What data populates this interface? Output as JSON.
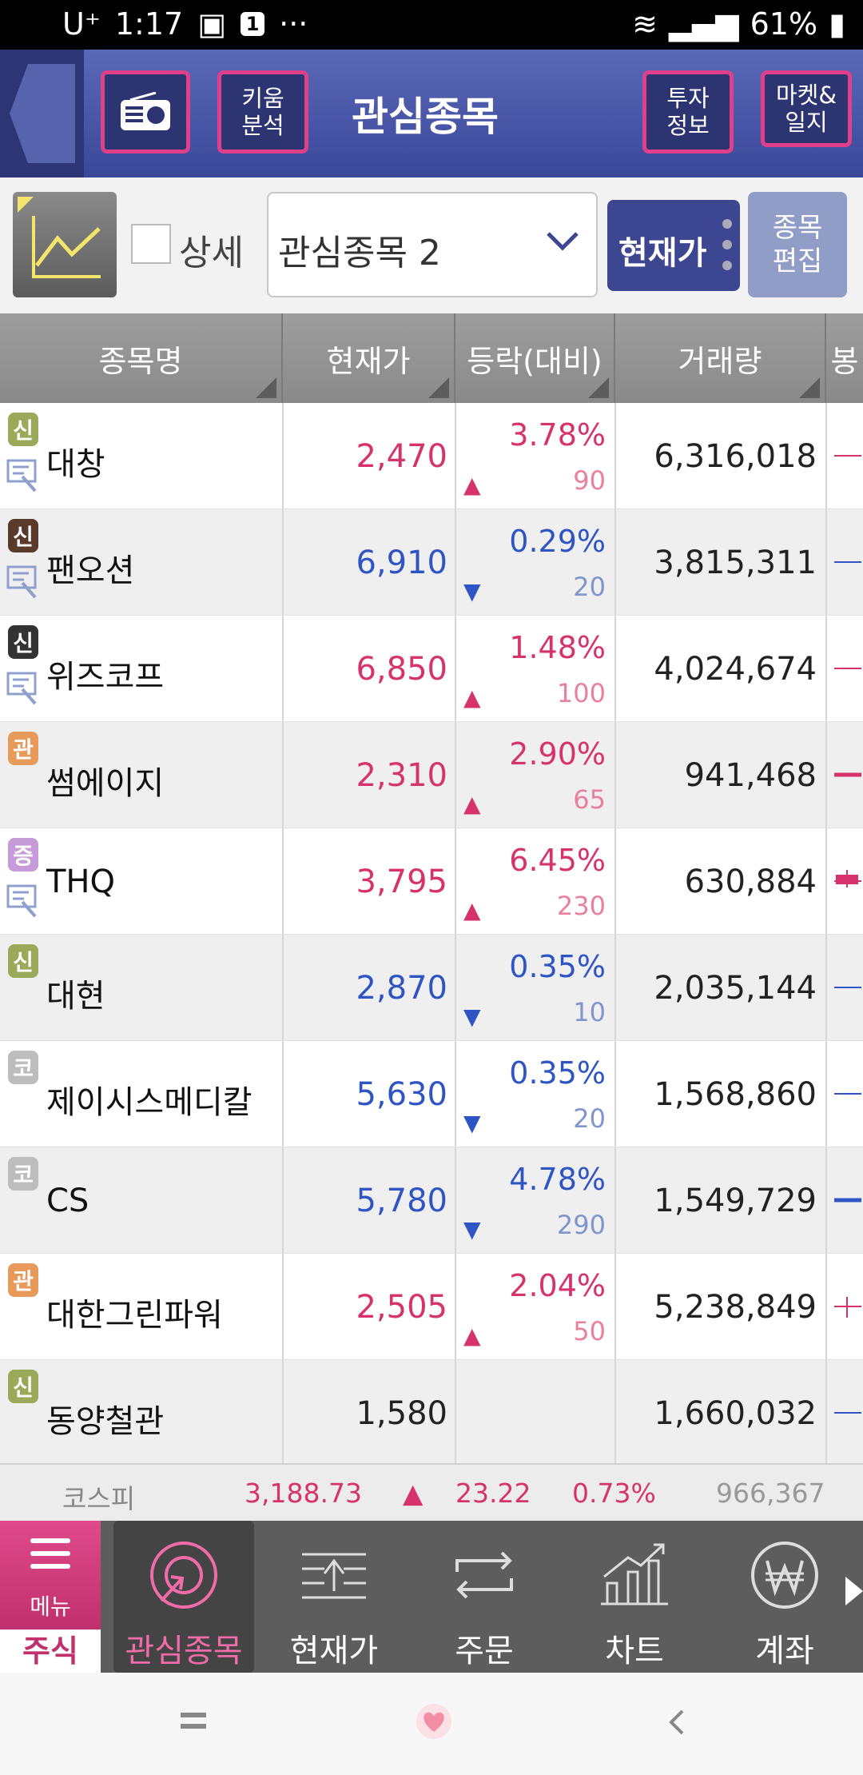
{
  "status_bar": {
    "carrier": "U⁺",
    "time": "1:17",
    "notification_count": "1",
    "dots": "···",
    "battery": "61%"
  },
  "header": {
    "btn_radio_icon": "radio-icon",
    "btn_kiwoom": "키움\n분석",
    "title": "관심종목",
    "btn_invest": "투자\n정보",
    "btn_market": "마켓&\n일지"
  },
  "toolbar": {
    "detail_label": "상세",
    "group_select": "관심종목 2",
    "price_mode": "현재가",
    "edit_btn": "종목\n편집"
  },
  "table": {
    "columns": [
      "종목명",
      "현재가",
      "등락(대비)",
      "거래량",
      "봉"
    ],
    "rows": [
      {
        "badge": "신",
        "badge_color": "#9aaa5a",
        "name": "대창",
        "price": "2,470",
        "dir": "up",
        "pct": "3.78%",
        "diff": "90",
        "volume": "6,316,018",
        "mini": true
      },
      {
        "badge": "신",
        "badge_color": "#5a3a2a",
        "name": "팬오션",
        "price": "6,910",
        "dir": "down",
        "pct": "0.29%",
        "diff": "20",
        "volume": "3,815,311",
        "mini": true
      },
      {
        "badge": "신",
        "badge_color": "#333333",
        "name": "위즈코프",
        "price": "6,850",
        "dir": "up",
        "pct": "1.48%",
        "diff": "100",
        "volume": "4,024,674",
        "mini": true
      },
      {
        "badge": "관",
        "badge_color": "#e89a5a",
        "name": "썸에이지",
        "price": "2,310",
        "dir": "up",
        "pct": "2.90%",
        "diff": "65",
        "volume": "941,468",
        "mini": false
      },
      {
        "badge": "증",
        "badge_color": "#c79ad8",
        "name": "THQ",
        "price": "3,795",
        "dir": "up",
        "pct": "6.45%",
        "diff": "230",
        "volume": "630,884",
        "mini": true
      },
      {
        "badge": "신",
        "badge_color": "#9aaa5a",
        "name": "대현",
        "price": "2,870",
        "dir": "down",
        "pct": "0.35%",
        "diff": "10",
        "volume": "2,035,144",
        "mini": false
      },
      {
        "badge": "코",
        "badge_color": "#bdbdbd",
        "name": "제이시스메디칼",
        "price": "5,630",
        "dir": "down",
        "pct": "0.35%",
        "diff": "20",
        "volume": "1,568,860",
        "mini": false
      },
      {
        "badge": "코",
        "badge_color": "#bdbdbd",
        "name": "CS",
        "price": "5,780",
        "dir": "down",
        "pct": "4.78%",
        "diff": "290",
        "volume": "1,549,729",
        "mini": false
      },
      {
        "badge": "관",
        "badge_color": "#e89a5a",
        "name": "대한그린파워",
        "price": "2,505",
        "dir": "up",
        "pct": "2.04%",
        "diff": "50",
        "volume": "5,238,849",
        "mini": false
      },
      {
        "badge": "신",
        "badge_color": "#9aaa5a",
        "name": "동양철관",
        "price": "1,580",
        "dir": "flat",
        "pct": "",
        "diff": "",
        "volume": "1,660,032",
        "mini": false
      }
    ]
  },
  "index_bar": {
    "name": "코스피",
    "value": "3,188.73",
    "arrow": "▲",
    "change": "23.22",
    "pct": "0.73%",
    "volume": "966,367"
  },
  "bottom_nav": {
    "menu_label": "메뉴",
    "section": "주식",
    "items": [
      {
        "label": "관심종목",
        "icon": "watchlist-icon",
        "active": true
      },
      {
        "label": "현재가",
        "icon": "current-price-icon",
        "active": false
      },
      {
        "label": "주문",
        "icon": "order-icon",
        "active": false
      },
      {
        "label": "차트",
        "icon": "chart-icon",
        "active": false
      },
      {
        "label": "계좌",
        "icon": "account-won-icon",
        "active": false
      }
    ]
  },
  "colors": {
    "up": "#d6336c",
    "down": "#2f55c4",
    "header_bg": "#3b4798",
    "accent": "#e0408a"
  }
}
